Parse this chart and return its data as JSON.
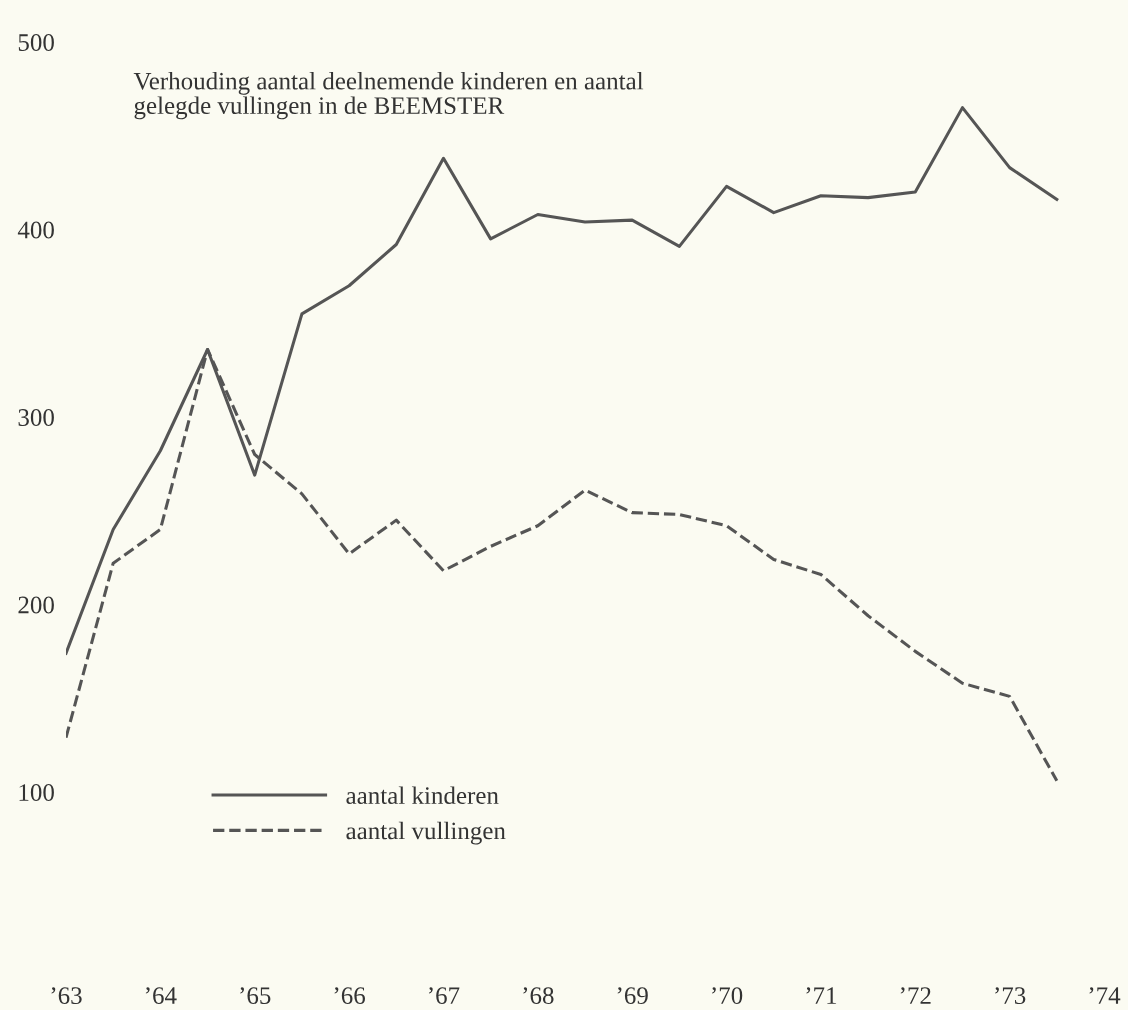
{
  "chart_data": {
    "type": "line",
    "title": "Verhouding aantal deelnemende kinderen en aantal\ngelegde vullingen in de BEEMSTER",
    "x": [
      1963.0,
      1963.5,
      1964.0,
      1964.5,
      1965.0,
      1965.5,
      1966.0,
      1966.5,
      1967.0,
      1967.5,
      1968.0,
      1968.5,
      1969.0,
      1969.5,
      1970.0,
      1970.5,
      1971.0,
      1971.5,
      1972.0,
      1972.5,
      1973.0,
      1973.5
    ],
    "series": [
      {
        "name": "aantal kinderen",
        "color": "#555555",
        "line_style": "solid",
        "values": [
          174,
          240,
          282,
          336,
          269,
          355,
          370,
          392,
          438,
          395,
          408,
          404,
          405,
          391,
          423,
          409,
          418,
          417,
          420,
          465,
          433,
          416
        ]
      },
      {
        "name": "aantal vullingen",
        "color": "#555555",
        "line_style": "dashed",
        "values": [
          129,
          222,
          240,
          336,
          280,
          259,
          227,
          245,
          218,
          231,
          242,
          261,
          249,
          248,
          242,
          224,
          216,
          194,
          175,
          158,
          151,
          106
        ]
      }
    ],
    "xlim": [
      1963,
      1974
    ],
    "ylim": [
      100,
      500
    ],
    "xticks": [
      {
        "value": 1963,
        "label": "’63"
      },
      {
        "value": 1964,
        "label": "’64"
      },
      {
        "value": 1965,
        "label": "’65"
      },
      {
        "value": 1966,
        "label": "’66"
      },
      {
        "value": 1967,
        "label": "’67"
      },
      {
        "value": 1968,
        "label": "’68"
      },
      {
        "value": 1969,
        "label": "’69"
      },
      {
        "value": 1970,
        "label": "’70"
      },
      {
        "value": 1971,
        "label": "’71"
      },
      {
        "value": 1972,
        "label": "’72"
      },
      {
        "value": 1973,
        "label": "’73"
      },
      {
        "value": 1974,
        "label": "’74"
      }
    ],
    "yticks": [
      100,
      200,
      300,
      400,
      500
    ],
    "grid": false,
    "legend": "bottom left",
    "marker": "none"
  }
}
